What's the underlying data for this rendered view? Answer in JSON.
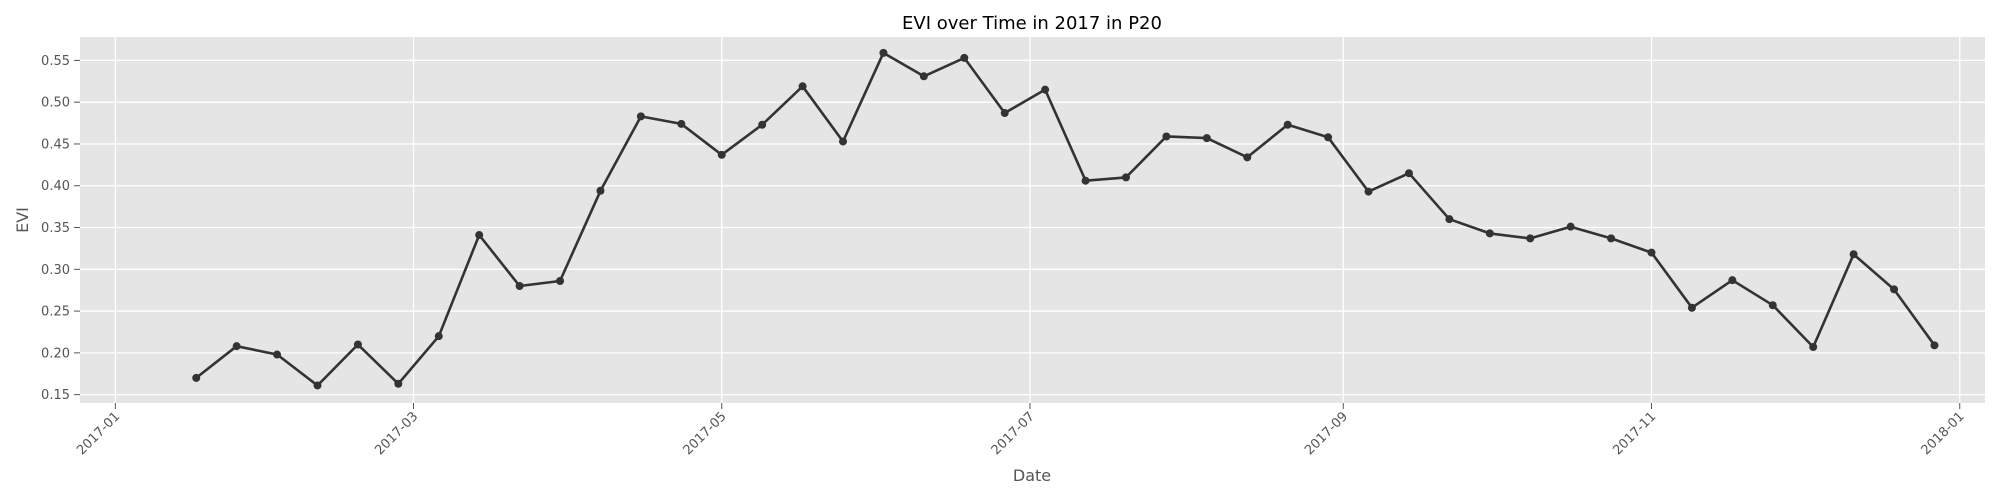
{
  "chart_data": {
    "type": "line",
    "title": "EVI over Time in 2017 in P20",
    "xlabel": "Date",
    "ylabel": "EVI",
    "x_ticks": [
      "2017-01",
      "2017-03",
      "2017-05",
      "2017-07",
      "2017-09",
      "2017-11",
      "2018-01"
    ],
    "x_tick_dates": [
      "2017-01-01",
      "2017-03-01",
      "2017-05-01",
      "2017-07-01",
      "2017-09-01",
      "2017-11-01",
      "2018-01-01"
    ],
    "y_ticks": [
      "0.15",
      "0.20",
      "0.25",
      "0.30",
      "0.35",
      "0.40",
      "0.45",
      "0.50",
      "0.55"
    ],
    "xlim": [
      "2016-12-25",
      "2018-01-06"
    ],
    "ylim": [
      0.14,
      0.578
    ],
    "grid": true,
    "line_color": "#333333",
    "background_color": "#e5e5e5",
    "series": [
      {
        "x": [
          "2017-01-17",
          "2017-01-25",
          "2017-02-02",
          "2017-02-10",
          "2017-02-18",
          "2017-02-26",
          "2017-03-06",
          "2017-03-14",
          "2017-03-22",
          "2017-03-30",
          "2017-04-07",
          "2017-04-15",
          "2017-04-23",
          "2017-05-01",
          "2017-05-09",
          "2017-05-17",
          "2017-05-25",
          "2017-06-02",
          "2017-06-10",
          "2017-06-18",
          "2017-06-26",
          "2017-07-04",
          "2017-07-12",
          "2017-07-20",
          "2017-07-28",
          "2017-08-05",
          "2017-08-13",
          "2017-08-21",
          "2017-08-29",
          "2017-09-06",
          "2017-09-14",
          "2017-09-22",
          "2017-09-30",
          "2017-10-08",
          "2017-10-16",
          "2017-10-24",
          "2017-11-01",
          "2017-11-09",
          "2017-11-17",
          "2017-11-25",
          "2017-12-03",
          "2017-12-11",
          "2017-12-19",
          "2017-12-27"
        ],
        "values": [
          0.17,
          0.208,
          0.198,
          0.161,
          0.21,
          0.163,
          0.22,
          0.341,
          0.28,
          0.286,
          0.394,
          0.483,
          0.474,
          0.437,
          0.473,
          0.519,
          0.453,
          0.559,
          0.531,
          0.553,
          0.487,
          0.515,
          0.406,
          0.41,
          0.459,
          0.457,
          0.434,
          0.473,
          0.458,
          0.393,
          0.415,
          0.36,
          0.343,
          0.337,
          0.351,
          0.337,
          0.32,
          0.254,
          0.287,
          0.257,
          0.207,
          0.318,
          0.276,
          0.209
        ]
      }
    ]
  }
}
